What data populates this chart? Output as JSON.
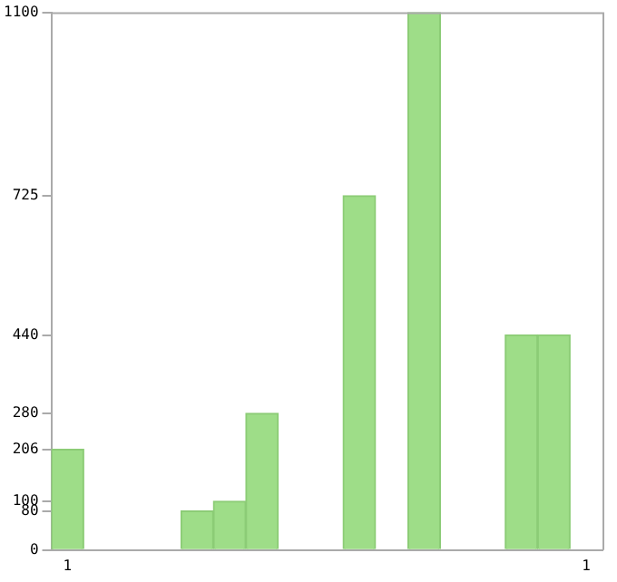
{
  "chart_data": {
    "type": "bar",
    "categories": [
      "1",
      null,
      null,
      null,
      null,
      null,
      null,
      null,
      null,
      null,
      null,
      null,
      null,
      null,
      null,
      null,
      "1"
    ],
    "values": [
      206,
      0,
      0,
      0,
      80,
      100,
      280,
      0,
      0,
      725,
      0,
      1100,
      0,
      0,
      440,
      440,
      0
    ],
    "color": "#9edd88",
    "ylim": [
      0,
      1100
    ],
    "yticks": [
      0,
      80,
      100,
      206,
      280,
      440,
      725,
      1100
    ],
    "grid": false,
    "legend": false
  }
}
